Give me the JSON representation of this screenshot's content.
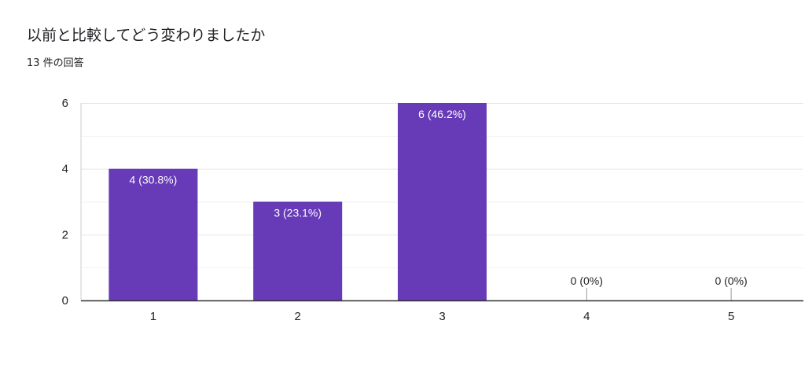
{
  "title": "以前と比較してどう変わりましたか",
  "subtitle": "13 件の回答",
  "colors": {
    "bar": "#673ab7",
    "bar_label_inside": "#ffffff",
    "bar_label_outside": "#222222",
    "gridline": "#e6e6e6",
    "axis": "#333333"
  },
  "chart_data": {
    "type": "bar",
    "categories": [
      "1",
      "2",
      "3",
      "4",
      "5"
    ],
    "values": [
      4,
      3,
      6,
      0,
      0
    ],
    "labels": [
      "4 (30.8%)",
      "3 (23.1%)",
      "6 (46.2%)",
      "0 (0%)",
      "0 (0%)"
    ],
    "y_ticks": [
      "0",
      "2",
      "4",
      "6"
    ],
    "ylim": [
      0,
      6
    ],
    "grid": true,
    "legend": "none"
  }
}
